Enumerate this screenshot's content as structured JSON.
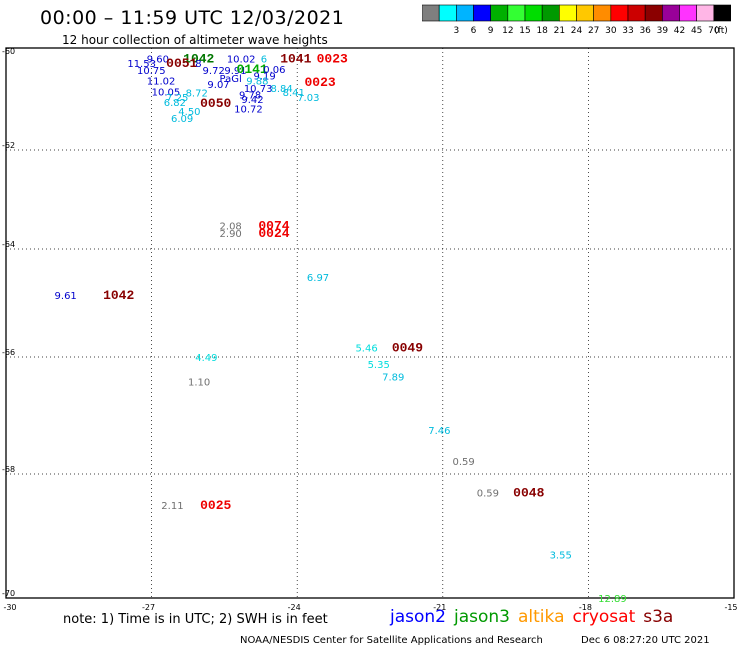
{
  "header": {
    "title": "00:00 – 11:59 UTC 12/03/2021",
    "subtitle": "12 hour collection of altimeter wave heights"
  },
  "color_scale": {
    "unit": "(ft)",
    "bins": [
      {
        "label": "",
        "color": "#7f7f7f"
      },
      {
        "label": "3",
        "color": "#00ffff"
      },
      {
        "label": "6",
        "color": "#00b4ff"
      },
      {
        "label": "9",
        "color": "#0000ff"
      },
      {
        "label": "12",
        "color": "#00b000"
      },
      {
        "label": "15",
        "color": "#33ff33"
      },
      {
        "label": "18",
        "color": "#00dd00"
      },
      {
        "label": "21",
        "color": "#009900"
      },
      {
        "label": "24",
        "color": "#ffff00"
      },
      {
        "label": "27",
        "color": "#ffc800"
      },
      {
        "label": "30",
        "color": "#ff8c00"
      },
      {
        "label": "33",
        "color": "#ff0000"
      },
      {
        "label": "36",
        "color": "#cc0000"
      },
      {
        "label": "39",
        "color": "#8b0000"
      },
      {
        "label": "42",
        "color": "#990099"
      },
      {
        "label": "45",
        "color": "#ff33ff"
      },
      {
        "label": "70",
        "color": "#ffb6e6"
      },
      {
        "label": "",
        "color": "#000000"
      }
    ]
  },
  "map": {
    "lon_ticks": [
      "-27",
      "-24",
      "-21",
      "-18",
      "-15"
    ],
    "lat_ticks": [
      "-60",
      "-62",
      "-64",
      "-66",
      "-68",
      "-70"
    ],
    "corner_lon": "-30"
  },
  "observations": [
    {
      "text": "9.60",
      "lon": -27.1,
      "lat": -60.05,
      "color": "#0000cc"
    },
    {
      "text": "1042",
      "lon": -26.35,
      "lat": -60.05,
      "color": "#007700",
      "bold": true
    },
    {
      "text": "11.53",
      "lon": -27.5,
      "lat": -60.15,
      "color": "#0000cc"
    },
    {
      "text": "0051",
      "lon": -26.7,
      "lat": -60.15,
      "color": "#880000",
      "bold": true
    },
    {
      "text": "8",
      "lon": -26.1,
      "lat": -60.15,
      "color": "#0000cc"
    },
    {
      "text": "10.75",
      "lon": -27.3,
      "lat": -60.3,
      "color": "#0000cc"
    },
    {
      "text": "9.72",
      "lon": -25.95,
      "lat": -60.3,
      "color": "#0000cc"
    },
    {
      "text": "9.91",
      "lon": -25.5,
      "lat": -60.3,
      "color": "#0000cc"
    },
    {
      "text": "11.02",
      "lon": -27.1,
      "lat": -60.52,
      "color": "#0000cc"
    },
    {
      "text": "10.05",
      "lon": -27.0,
      "lat": -60.75,
      "color": "#0000cc"
    },
    {
      "text": "10.02",
      "lon": -25.45,
      "lat": -60.05,
      "color": "#0000cc"
    },
    {
      "text": "6",
      "lon": -24.75,
      "lat": -60.05,
      "color": "#00bbdd"
    },
    {
      "text": "1041",
      "lon": -24.35,
      "lat": -60.05,
      "color": "#880000",
      "bold": true
    },
    {
      "text": "0023",
      "lon": -23.6,
      "lat": -60.05,
      "color": "#ee0000",
      "bold": true
    },
    {
      "text": "0141",
      "lon": -25.25,
      "lat": -60.28,
      "color": "#00aa00",
      "bold": true
    },
    {
      "text": "0.06",
      "lon": -24.7,
      "lat": -60.28,
      "color": "#0000cc"
    },
    {
      "text": "9.19",
      "lon": -24.9,
      "lat": -60.42,
      "color": "#0000cc"
    },
    {
      "text": "PaGl",
      "lon": -25.6,
      "lat": -60.47,
      "color": "#0000cc"
    },
    {
      "text": "9.88",
      "lon": -25.05,
      "lat": -60.52,
      "color": "#00bbdd"
    },
    {
      "text": "0023",
      "lon": -23.85,
      "lat": -60.55,
      "color": "#ee0000",
      "bold": true
    },
    {
      "text": "9.07",
      "lon": -25.85,
      "lat": -60.6,
      "color": "#0000cc"
    },
    {
      "text": "10.73",
      "lon": -25.1,
      "lat": -60.68,
      "color": "#0000cc"
    },
    {
      "text": "8.84",
      "lon": -24.55,
      "lat": -60.68,
      "color": "#00bbdd"
    },
    {
      "text": "8.72",
      "lon": -26.3,
      "lat": -60.78,
      "color": "#00bbdd"
    },
    {
      "text": "9.78",
      "lon": -25.2,
      "lat": -60.82,
      "color": "#0000cc"
    },
    {
      "text": "8.41",
      "lon": -24.3,
      "lat": -60.77,
      "color": "#00bbdd"
    },
    {
      "text": "7.25",
      "lon": -26.7,
      "lat": -60.87,
      "color": "#00bbdd"
    },
    {
      "text": "9.42",
      "lon": -25.15,
      "lat": -60.92,
      "color": "#0000cc"
    },
    {
      "text": "7.03",
      "lon": -24.0,
      "lat": -60.87,
      "color": "#00bbdd"
    },
    {
      "text": "6.82",
      "lon": -26.75,
      "lat": -60.98,
      "color": "#00bbdd"
    },
    {
      "text": "0050",
      "lon": -26.0,
      "lat": -61.0,
      "color": "#880000",
      "bold": true
    },
    {
      "text": "10.72",
      "lon": -25.3,
      "lat": -61.12,
      "color": "#0000cc"
    },
    {
      "text": "4.50",
      "lon": -26.45,
      "lat": -61.17,
      "color": "#00bbdd"
    },
    {
      "text": "6.09",
      "lon": -26.6,
      "lat": -61.32,
      "color": "#00bbdd"
    },
    {
      "text": "2.08",
      "lon": -25.6,
      "lat": -63.53,
      "color": "#707070"
    },
    {
      "text": "0074",
      "lon": -24.8,
      "lat": -63.53,
      "color": "#ee0000",
      "bold": true
    },
    {
      "text": "2.90",
      "lon": -25.6,
      "lat": -63.68,
      "color": "#707070"
    },
    {
      "text": "0024",
      "lon": -24.8,
      "lat": -63.68,
      "color": "#ee0000",
      "bold": true
    },
    {
      "text": "9.61",
      "lon": -29.0,
      "lat": -64.85,
      "color": "#0000cc"
    },
    {
      "text": "1042",
      "lon": -28.0,
      "lat": -64.85,
      "color": "#880000",
      "bold": true
    },
    {
      "text": "6.97",
      "lon": -23.8,
      "lat": -64.52,
      "color": "#00bbdd"
    },
    {
      "text": "5.46",
      "lon": -22.8,
      "lat": -65.82,
      "color": "#00dddd"
    },
    {
      "text": "0049",
      "lon": -22.05,
      "lat": -65.82,
      "color": "#880000",
      "bold": true
    },
    {
      "text": "5.35",
      "lon": -22.55,
      "lat": -66.12,
      "color": "#00dddd"
    },
    {
      "text": "7.89",
      "lon": -22.25,
      "lat": -66.33,
      "color": "#00bbdd"
    },
    {
      "text": "4.49",
      "lon": -26.1,
      "lat": -66.0,
      "color": "#00dddd"
    },
    {
      "text": "1.10",
      "lon": -26.25,
      "lat": -66.42,
      "color": "#707070"
    },
    {
      "text": "7.46",
      "lon": -21.3,
      "lat": -67.25,
      "color": "#00bbdd"
    },
    {
      "text": "0.59",
      "lon": -20.8,
      "lat": -67.78,
      "color": "#707070"
    },
    {
      "text": "0.59",
      "lon": -20.3,
      "lat": -68.3,
      "color": "#707070"
    },
    {
      "text": "0048",
      "lon": -19.55,
      "lat": -68.3,
      "color": "#880000",
      "bold": true
    },
    {
      "text": "2.11",
      "lon": -26.8,
      "lat": -68.5,
      "color": "#707070"
    },
    {
      "text": "0025",
      "lon": -26.0,
      "lat": -68.5,
      "color": "#ee0000",
      "bold": true
    },
    {
      "text": "3.55",
      "lon": -18.8,
      "lat": -69.3,
      "color": "#00bbdd"
    },
    {
      "text": "12.89",
      "lon": -17.8,
      "lat": -70.1,
      "color": "#33dd33"
    }
  ],
  "footer": {
    "note": "note: 1) Time is in UTC; 2) SWH is in feet",
    "legend": [
      {
        "label": "jason2",
        "color": "#0000ff"
      },
      {
        "label": "jason3",
        "color": "#009900"
      },
      {
        "label": "altika",
        "color": "#ff9900"
      },
      {
        "label": "cryosat",
        "color": "#ff0000"
      },
      {
        "label": "s3a",
        "color": "#880000"
      }
    ],
    "credit": "NOAA/NESDIS Center for Satellite Applications and Research",
    "timestamp": "Dec  6 08:27:20 UTC 2021"
  }
}
